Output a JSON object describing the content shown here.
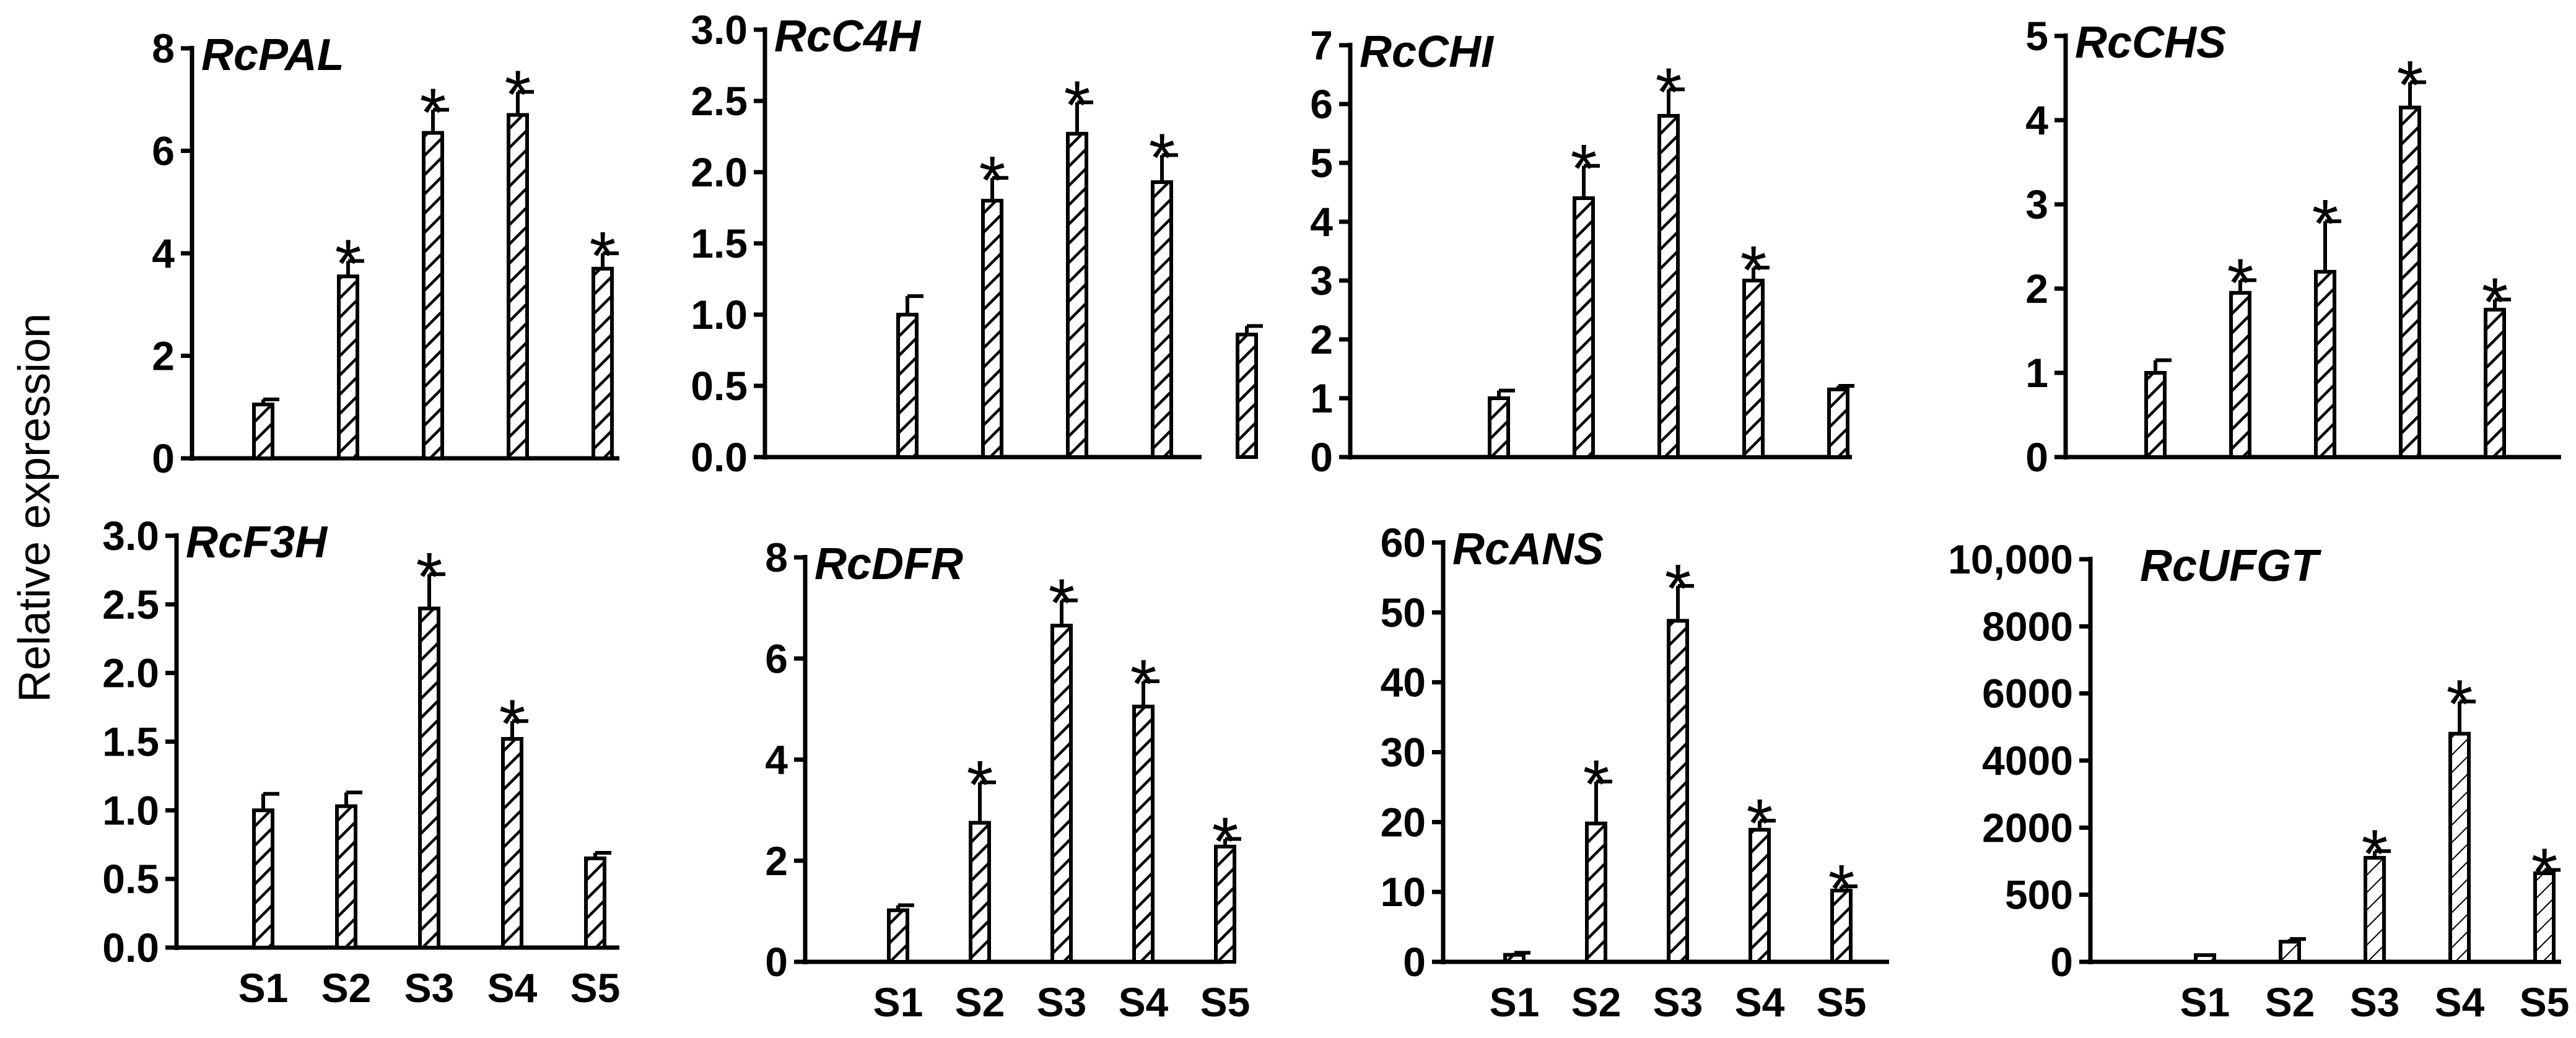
{
  "figure": {
    "ylabel": "Relative expression",
    "categories": [
      "S1",
      "S2",
      "S3",
      "S4",
      "S5"
    ],
    "significance_mark": "*"
  },
  "chart_data": [
    {
      "type": "bar",
      "title": "RcPAL",
      "categories": [
        "S1",
        "S2",
        "S3",
        "S4",
        "S5"
      ],
      "values": [
        1.05,
        3.55,
        6.35,
        6.7,
        3.7
      ],
      "errors": [
        0.1,
        0.3,
        0.45,
        0.45,
        0.3
      ],
      "significant": [
        false,
        true,
        true,
        true,
        true
      ],
      "ylim": [
        0,
        8
      ],
      "yticks": [
        0,
        2,
        4,
        6,
        8
      ],
      "ytick_labels": [
        "0",
        "2",
        "4",
        "6",
        "8"
      ],
      "ylabel": "Relative expression",
      "xlabel": "",
      "show_xtick_labels": false,
      "grid": false
    },
    {
      "type": "bar",
      "title": "RcC4H",
      "categories": [
        "S1",
        "S2",
        "S3",
        "S4",
        "S5"
      ],
      "values": [
        1.0,
        1.8,
        2.27,
        1.93,
        0.86
      ],
      "errors": [
        0.13,
        0.16,
        0.22,
        0.19,
        0.06
      ],
      "significant": [
        false,
        true,
        true,
        true,
        false
      ],
      "ylim": [
        0,
        3
      ],
      "yticks": [
        0,
        0.5,
        1,
        1.5,
        2,
        2.5,
        3
      ],
      "ytick_labels": [
        "0.0",
        "0.5",
        "1.0",
        "1.5",
        "2.0",
        "2.5",
        "3.0"
      ],
      "xlabel": "",
      "show_xtick_labels": false,
      "grid": false
    },
    {
      "type": "bar",
      "title": "RcCHI",
      "categories": [
        "S1",
        "S2",
        "S3",
        "S4",
        "S5"
      ],
      "values": [
        1.0,
        4.4,
        5.8,
        3.0,
        1.15
      ],
      "errors": [
        0.13,
        0.55,
        0.45,
        0.22,
        0.06
      ],
      "significant": [
        false,
        true,
        true,
        true,
        false
      ],
      "ylim": [
        0,
        7
      ],
      "yticks": [
        0,
        1,
        2,
        3,
        4,
        5,
        6,
        7
      ],
      "ytick_labels": [
        "0",
        "1",
        "2",
        "3",
        "4",
        "5",
        "6",
        "7"
      ],
      "xlabel": "",
      "show_xtick_labels": false,
      "grid": false
    },
    {
      "type": "bar",
      "title": "RcCHS",
      "categories": [
        "S1",
        "S2",
        "S3",
        "S4",
        "S5"
      ],
      "values": [
        1.0,
        1.95,
        2.2,
        4.15,
        1.75
      ],
      "errors": [
        0.15,
        0.15,
        0.6,
        0.3,
        0.12
      ],
      "significant": [
        false,
        true,
        true,
        true,
        true
      ],
      "ylim": [
        0,
        5
      ],
      "yticks": [
        0,
        1,
        2,
        3,
        4,
        5
      ],
      "ytick_labels": [
        "0",
        "1",
        "2",
        "3",
        "4",
        "5"
      ],
      "xlabel": "",
      "show_xtick_labels": false,
      "grid": false
    },
    {
      "type": "bar",
      "title": "RcF3H",
      "categories": [
        "S1",
        "S2",
        "S3",
        "S4",
        "S5"
      ],
      "values": [
        1.0,
        1.03,
        2.47,
        1.52,
        0.65
      ],
      "errors": [
        0.12,
        0.1,
        0.25,
        0.13,
        0.04
      ],
      "significant": [
        false,
        false,
        true,
        true,
        false
      ],
      "ylim": [
        0,
        3
      ],
      "yticks": [
        0,
        0.5,
        1,
        1.5,
        2,
        2.5,
        3
      ],
      "ytick_labels": [
        "0.0",
        "0.5",
        "1.0",
        "1.5",
        "2.0",
        "2.5",
        "3.0"
      ],
      "xlabel": "",
      "show_xtick_labels": true,
      "grid": false
    },
    {
      "type": "bar",
      "title": "RcDFR",
      "categories": [
        "S1",
        "S2",
        "S3",
        "S4",
        "S5"
      ],
      "values": [
        1.02,
        2.75,
        6.65,
        5.05,
        2.28
      ],
      "errors": [
        0.1,
        0.8,
        0.5,
        0.5,
        0.15
      ],
      "significant": [
        false,
        true,
        true,
        true,
        true
      ],
      "ylim": [
        0,
        8
      ],
      "yticks": [
        0,
        2,
        4,
        6,
        8
      ],
      "ytick_labels": [
        "0",
        "2",
        "4",
        "6",
        "8"
      ],
      "xlabel": "",
      "show_xtick_labels": true,
      "grid": false
    },
    {
      "type": "bar",
      "title": "RcANS",
      "categories": [
        "S1",
        "S2",
        "S3",
        "S4",
        "S5"
      ],
      "values": [
        1.0,
        19.8,
        48.8,
        18.9,
        10.2
      ],
      "errors": [
        0.3,
        6.0,
        5.0,
        1.3,
        0.6
      ],
      "significant": [
        false,
        true,
        true,
        true,
        true
      ],
      "ylim": [
        0,
        60
      ],
      "yticks": [
        0,
        10,
        20,
        30,
        40,
        50,
        60
      ],
      "ytick_labels": [
        "0",
        "10",
        "20",
        "30",
        "40",
        "50",
        "60"
      ],
      "xlabel": "",
      "show_xtick_labels": true,
      "grid": false
    },
    {
      "type": "bar",
      "title": "RcUFGT",
      "categories": [
        "S1",
        "S2",
        "S3",
        "S4",
        "S5"
      ],
      "bar_positions": [
        0.1,
        0.3,
        1.55,
        3.4,
        1.32
      ],
      "errors_positions": [
        0,
        0.04,
        0.1,
        0.48,
        0.05
      ],
      "significant": [
        false,
        false,
        true,
        true,
        true
      ],
      "ylim_positions": [
        0,
        6
      ],
      "ytick_labels": [
        "0",
        "500",
        "2000",
        "4000",
        "6000",
        "8000",
        "10,000"
      ],
      "xlabel": "",
      "show_xtick_labels": true,
      "grid": false
    }
  ]
}
